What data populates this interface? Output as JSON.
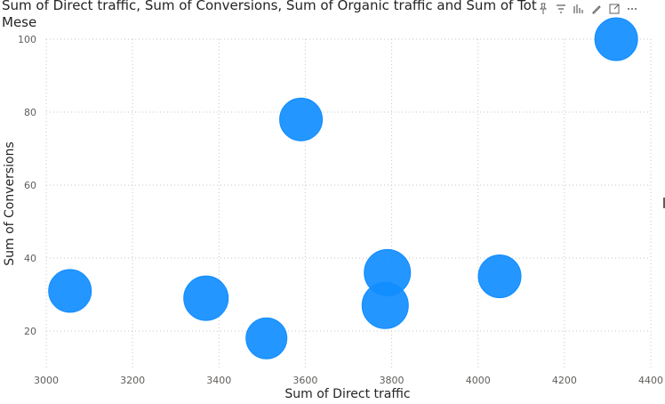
{
  "chart_data": {
    "type": "scatter",
    "title": "Sum of Direct traffic, Sum of Conversions, Sum of Organic traffic and Sum of Tot Mese",
    "xlabel": "Sum of Direct traffic",
    "ylabel": "Sum of Conversions",
    "xlim": [
      3000,
      4400
    ],
    "ylim": [
      10,
      100
    ],
    "xticks": [
      3000,
      3200,
      3400,
      3600,
      3800,
      4000,
      4200,
      4400
    ],
    "yticks": [
      20,
      40,
      60,
      80,
      100
    ],
    "grid": true,
    "color": "#118DFF",
    "points": [
      {
        "x": 3055,
        "y": 31,
        "size": 24
      },
      {
        "x": 3370,
        "y": 29,
        "size": 25
      },
      {
        "x": 3510,
        "y": 18,
        "size": 23
      },
      {
        "x": 3590,
        "y": 78,
        "size": 24
      },
      {
        "x": 3790,
        "y": 36,
        "size": 26
      },
      {
        "x": 3785,
        "y": 27,
        "size": 26
      },
      {
        "x": 4050,
        "y": 35,
        "size": 24
      },
      {
        "x": 4320,
        "y": 100,
        "size": 24
      }
    ]
  },
  "header_icons": [
    "pin-icon",
    "filter-icon",
    "chart-type-icon",
    "format-icon",
    "focus-mode-icon",
    "more-options-icon"
  ],
  "axis_colors": {
    "text": "#252423",
    "ticks": "#605e5c",
    "grid": "#c8c6c4"
  }
}
